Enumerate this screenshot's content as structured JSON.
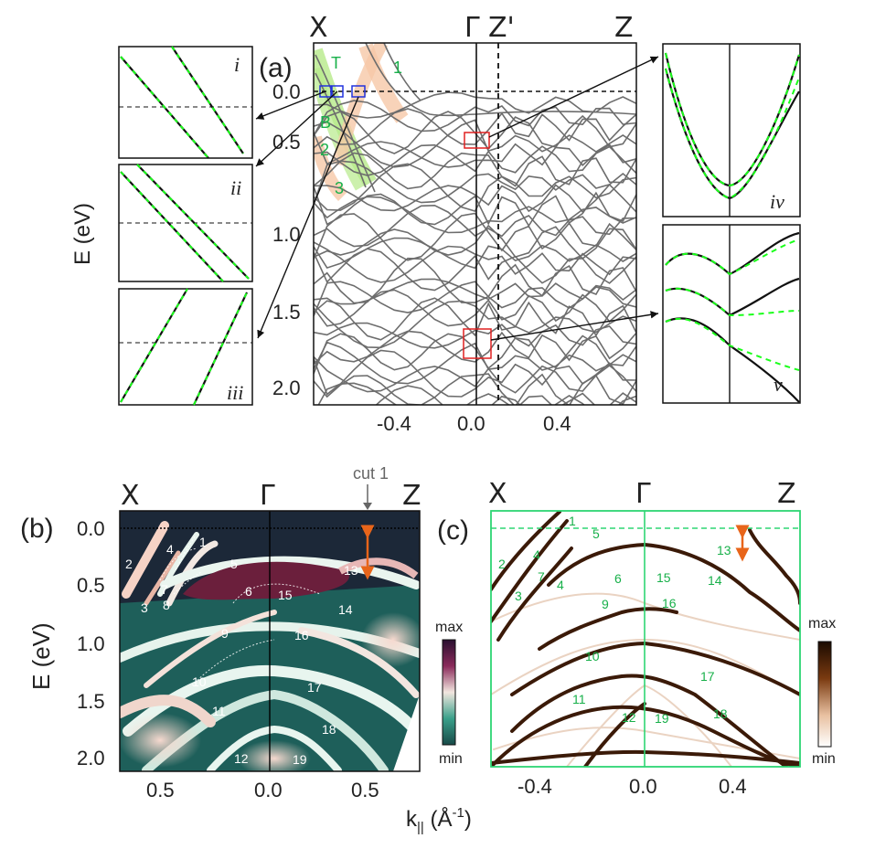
{
  "figure": {
    "panel_a": {
      "label": "(a)",
      "top_labels": [
        "X",
        "Γ",
        "Z'",
        "Z"
      ],
      "yticks": [
        "0.0",
        "0.5",
        "1.0",
        "1.5",
        "2.0"
      ],
      "xticks": [
        "-0.4",
        "0.0",
        "0.4"
      ],
      "ylabel": "E (eV)",
      "band_tags": [
        "T",
        "B",
        "1",
        "2",
        "3"
      ],
      "zoom_left": [
        "i",
        "ii",
        "iii"
      ],
      "zoom_right": [
        "iv",
        "v"
      ]
    },
    "panel_b": {
      "label": "(b)",
      "top_labels": [
        "X",
        "Γ",
        "Z"
      ],
      "cut_label": "cut 1",
      "yticks": [
        "0.0",
        "0.5",
        "1.0",
        "1.5",
        "2.0"
      ],
      "xticks": [
        "0.5",
        "0.0",
        "0.5"
      ],
      "ylabel": "E (eV)",
      "colorbar": [
        "max",
        "min"
      ],
      "band_numbers": [
        "1",
        "2",
        "3",
        "4",
        "5",
        "6",
        "7",
        "8",
        "9",
        "10",
        "11",
        "12",
        "13",
        "14",
        "15",
        "16",
        "17",
        "18",
        "19"
      ]
    },
    "panel_c": {
      "label": "(c)",
      "top_labels": [
        "X",
        "Γ",
        "Z"
      ],
      "xticks": [
        "-0.4",
        "0.0",
        "0.4"
      ],
      "colorbar": [
        "max",
        "min"
      ],
      "band_numbers": [
        "1",
        "2",
        "3",
        "4",
        "4",
        "5",
        "6",
        "7",
        "9",
        "10",
        "11",
        "12",
        "13",
        "14",
        "15",
        "16",
        "17",
        "18",
        "19"
      ]
    },
    "xlabel_k": "k",
    "xlabel_sub": "||",
    "xlabel_unit": " (Å",
    "xlabel_exp": "-1",
    "xlabel_close": ")"
  },
  "colors": {
    "band_gray": "#6d6d6d",
    "green_dash": "#1aff1a",
    "arrow_orange": "#e8651a",
    "box_red": "#e02020",
    "box_blue": "#2233dd",
    "frame_green": "#2ed573",
    "map_dark": "#1d2a3a"
  }
}
